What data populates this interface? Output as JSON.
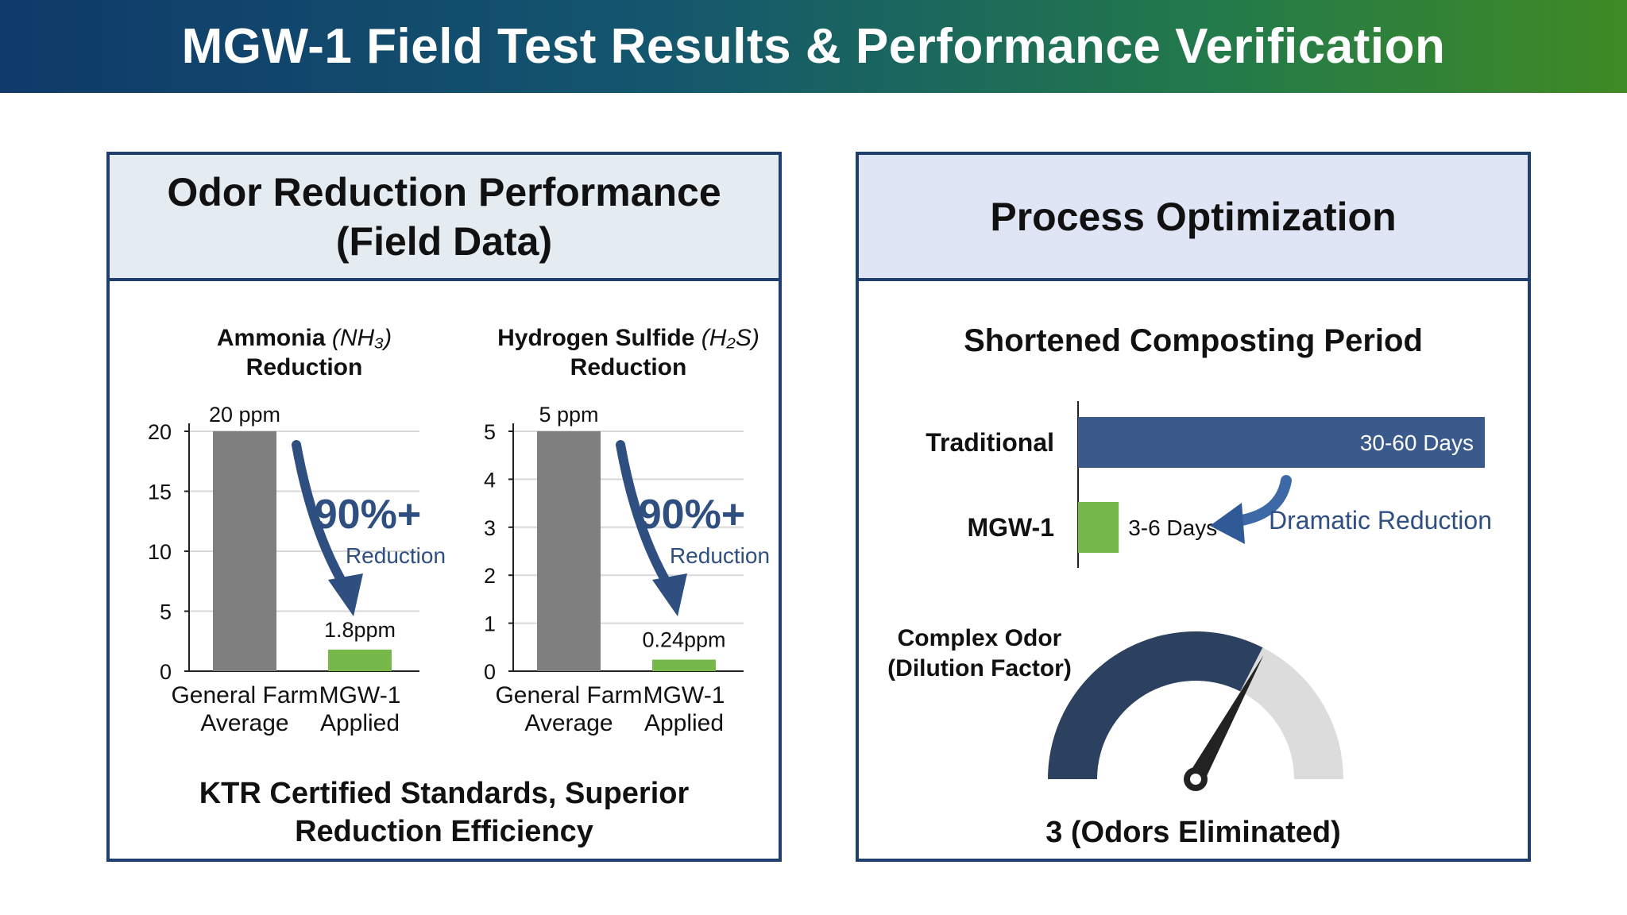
{
  "header": {
    "title": "MGW-1 Field Test Results & Performance Verification"
  },
  "left_panel": {
    "title_line1": "Odor Reduction Performance",
    "title_line2": "(Field Data)",
    "footer_line1": "KTR Certified Standards, Superior",
    "footer_line2": "Reduction Efficiency"
  },
  "right_panel": {
    "title": "Process Optimization",
    "section_title": "Shortened Composting Period",
    "gauge_label_line1": "Complex Odor",
    "gauge_label_line2": "(Dilution Factor)",
    "gauge_value_label": "3 (Odors Eliminated)",
    "annotation": "Dramatic Reduction"
  },
  "colors": {
    "navy": "#1f3f6e",
    "bar_gray": "#7f7f7f",
    "bar_green": "#76b94a",
    "bar_blue": "#3a5a8c",
    "reduction_blue": "#2f4f80",
    "gauge_dark": "#2c4060",
    "gauge_light": "#dcdcdc"
  },
  "chart_data": [
    {
      "type": "bar",
      "title_bold": "Ammonia",
      "title_italic": "(NH₃)",
      "title_line2": "Reduction",
      "categories": [
        "General Farm Average",
        "MGW-1 Applied"
      ],
      "category_lines": [
        [
          "General Farm",
          "Average"
        ],
        [
          "MGW-1",
          "Applied"
        ]
      ],
      "values": [
        20,
        1.8
      ],
      "data_labels": [
        "20 ppm",
        "1.8ppm"
      ],
      "ylim": [
        0,
        20
      ],
      "yticks": [
        0,
        5,
        10,
        15,
        20
      ],
      "annotation_big": "90%+",
      "annotation_small": "Reduction"
    },
    {
      "type": "bar",
      "title_bold": "Hydrogen Sulfide",
      "title_italic": "(H₂S)",
      "title_line2": "Reduction",
      "categories": [
        "General Farm Average",
        "MGW-1 Applied"
      ],
      "category_lines": [
        [
          "General Farm",
          "Average"
        ],
        [
          "MGW-1",
          "Applied"
        ]
      ],
      "values": [
        5,
        0.24
      ],
      "data_labels": [
        "5 ppm",
        "0.24ppm"
      ],
      "ylim": [
        0,
        5
      ],
      "yticks": [
        0,
        1,
        2,
        3,
        4,
        5
      ],
      "annotation_big": "90%+",
      "annotation_small": "Reduction"
    },
    {
      "type": "bar",
      "orientation": "horizontal",
      "title": "Shortened Composting Period",
      "categories": [
        "Traditional",
        "MGW-1"
      ],
      "values": [
        60,
        6
      ],
      "data_labels": [
        "30-60 Days",
        "3-6 Days"
      ]
    },
    {
      "type": "gauge",
      "title": "Complex Odor (Dilution Factor)",
      "value_label": "3 (Odors Eliminated)",
      "filled_fraction": 0.65
    }
  ]
}
